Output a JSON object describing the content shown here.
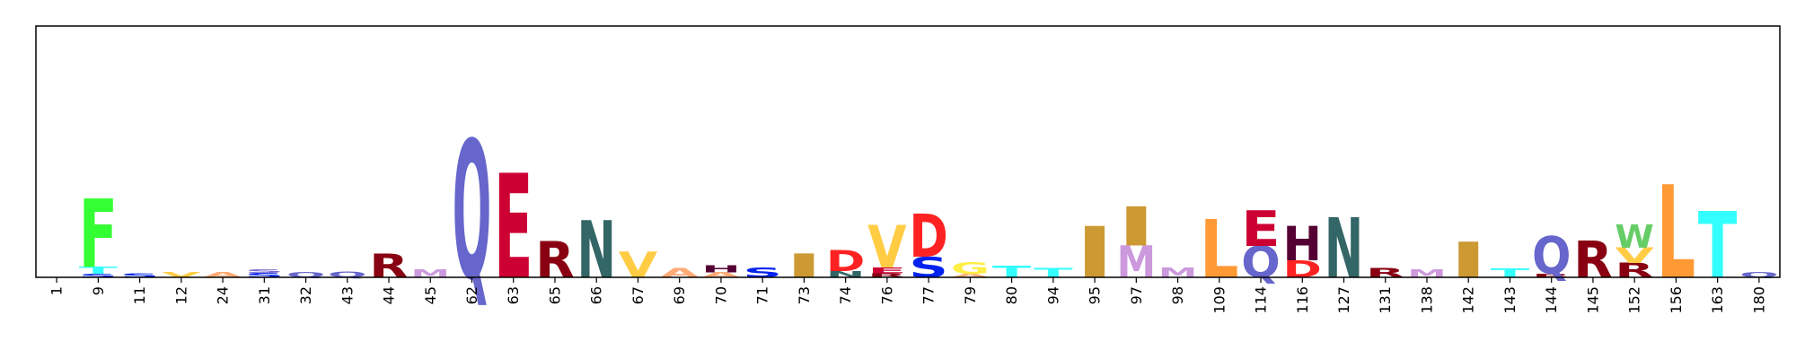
{
  "chart_data": {
    "type": "sequence-logo",
    "title": "",
    "xlabel": "",
    "ylabel": "",
    "ylim": [
      0,
      4.4
    ],
    "grid": false,
    "positions": [
      {
        "label": "1",
        "letters": []
      },
      {
        "label": "9",
        "letters": [
          {
            "char": "S",
            "height": 0.06,
            "color": "#0022EE"
          },
          {
            "char": "T",
            "height": 0.12,
            "color": "#33FFFF"
          },
          {
            "char": "F",
            "height": 1.2,
            "color": "#33FF33"
          }
        ]
      },
      {
        "label": "11",
        "letters": [
          {
            "char": "S",
            "height": 0.07,
            "color": "#0022EE"
          }
        ]
      },
      {
        "label": "12",
        "letters": [
          {
            "char": "V",
            "height": 0.09,
            "color": "#FFCC44"
          }
        ]
      },
      {
        "label": "24",
        "letters": [
          {
            "char": "A",
            "height": 0.09,
            "color": "#FFAA77"
          }
        ]
      },
      {
        "label": "31",
        "letters": [
          {
            "char": "S",
            "height": 0.08,
            "color": "#0022EE"
          },
          {
            "char": "S",
            "height": 0.06,
            "color": "#7766CC"
          }
        ]
      },
      {
        "label": "32",
        "letters": [
          {
            "char": "Q",
            "height": 0.09,
            "color": "#6666CC"
          }
        ]
      },
      {
        "label": "43",
        "letters": [
          {
            "char": "Q",
            "height": 0.1,
            "color": "#6666CC"
          }
        ]
      },
      {
        "label": "44",
        "letters": [
          {
            "char": "R",
            "height": 0.42,
            "color": "#880011"
          }
        ]
      },
      {
        "label": "45",
        "letters": [
          {
            "char": "M",
            "height": 0.14,
            "color": "#CC99DD"
          }
        ]
      },
      {
        "label": "62",
        "letters": [
          {
            "char": "Q",
            "height": 2.42,
            "color": "#6666CC"
          }
        ]
      },
      {
        "label": "63",
        "letters": [
          {
            "char": "E",
            "height": 1.83,
            "color": "#CC0033"
          }
        ]
      },
      {
        "label": "65",
        "letters": [
          {
            "char": "R",
            "height": 0.63,
            "color": "#880011"
          }
        ]
      },
      {
        "label": "66",
        "letters": [
          {
            "char": "N",
            "height": 1.0,
            "color": "#336666"
          }
        ]
      },
      {
        "label": "67",
        "letters": [
          {
            "char": "V",
            "height": 0.45,
            "color": "#FFCC44"
          }
        ]
      },
      {
        "label": "69",
        "letters": [
          {
            "char": "A",
            "height": 0.16,
            "color": "#FFAA77"
          }
        ]
      },
      {
        "label": "70",
        "letters": [
          {
            "char": "A",
            "height": 0.09,
            "color": "#FFAA77"
          },
          {
            "char": "H",
            "height": 0.12,
            "color": "#550033"
          }
        ]
      },
      {
        "label": "71",
        "letters": [
          {
            "char": "S",
            "height": 0.17,
            "color": "#0022EE"
          }
        ]
      },
      {
        "label": "73",
        "letters": [
          {
            "char": "I",
            "height": 0.42,
            "color": "#CC9933"
          }
        ]
      },
      {
        "label": "74",
        "letters": [
          {
            "char": "N",
            "height": 0.11,
            "color": "#336666"
          },
          {
            "char": "D",
            "height": 0.37,
            "color": "#FF2222"
          }
        ]
      },
      {
        "label": "76",
        "letters": [
          {
            "char": "R",
            "height": 0.07,
            "color": "#880011"
          },
          {
            "char": "E",
            "height": 0.1,
            "color": "#CC0033"
          },
          {
            "char": "V",
            "height": 0.75,
            "color": "#FFCC44"
          }
        ]
      },
      {
        "label": "77",
        "letters": [
          {
            "char": "S",
            "height": 0.36,
            "color": "#0022EE"
          },
          {
            "char": "D",
            "height": 0.76,
            "color": "#FF2222"
          }
        ]
      },
      {
        "label": "79",
        "letters": [
          {
            "char": "A",
            "height": 0.06,
            "color": "#FFAA77"
          },
          {
            "char": "G",
            "height": 0.2,
            "color": "#FFEE44"
          }
        ]
      },
      {
        "label": "80",
        "letters": [
          {
            "char": "T",
            "height": 0.2,
            "color": "#33FFFF"
          }
        ]
      },
      {
        "label": "94",
        "letters": [
          {
            "char": "T",
            "height": 0.16,
            "color": "#33FFFF"
          }
        ]
      },
      {
        "label": "95",
        "letters": [
          {
            "char": "I",
            "height": 0.9,
            "color": "#CC9933"
          }
        ]
      },
      {
        "label": "97",
        "letters": [
          {
            "char": "M",
            "height": 0.56,
            "color": "#CC99DD"
          },
          {
            "char": "I",
            "height": 0.68,
            "color": "#CC9933"
          }
        ]
      },
      {
        "label": "98",
        "letters": [
          {
            "char": "M",
            "height": 0.17,
            "color": "#CC99DD"
          }
        ]
      },
      {
        "label": "109",
        "letters": [
          {
            "char": "L",
            "height": 1.02,
            "color": "#FF9933"
          }
        ]
      },
      {
        "label": "114",
        "letters": [
          {
            "char": "Q",
            "height": 0.55,
            "color": "#6666CC"
          },
          {
            "char": "E",
            "height": 0.62,
            "color": "#CC0033"
          }
        ]
      },
      {
        "label": "116",
        "letters": [
          {
            "char": "D",
            "height": 0.3,
            "color": "#FF2222"
          },
          {
            "char": "H",
            "height": 0.6,
            "color": "#550033"
          }
        ]
      },
      {
        "label": "127",
        "letters": [
          {
            "char": "N",
            "height": 1.05,
            "color": "#336666"
          }
        ]
      },
      {
        "label": "131",
        "letters": [
          {
            "char": "R",
            "height": 0.16,
            "color": "#880011"
          }
        ]
      },
      {
        "label": "138",
        "letters": [
          {
            "char": "M",
            "height": 0.14,
            "color": "#CC99DD"
          }
        ]
      },
      {
        "label": "142",
        "letters": [
          {
            "char": "I",
            "height": 0.62,
            "color": "#CC9933"
          }
        ]
      },
      {
        "label": "143",
        "letters": [
          {
            "char": "T",
            "height": 0.15,
            "color": "#33FFFF"
          }
        ]
      },
      {
        "label": "144",
        "letters": [
          {
            "char": "R",
            "height": 0.06,
            "color": "#880011"
          },
          {
            "char": "Q",
            "height": 0.65,
            "color": "#6666CC"
          }
        ]
      },
      {
        "label": "145",
        "letters": [
          {
            "char": "R",
            "height": 0.64,
            "color": "#880011"
          }
        ]
      },
      {
        "label": "152",
        "letters": [
          {
            "char": "R",
            "height": 0.25,
            "color": "#880011"
          },
          {
            "char": "V",
            "height": 0.27,
            "color": "#FFCC44"
          },
          {
            "char": "W",
            "height": 0.41,
            "color": "#66CC66"
          }
        ]
      },
      {
        "label": "156",
        "letters": [
          {
            "char": "L",
            "height": 1.63,
            "color": "#FF9933"
          }
        ]
      },
      {
        "label": "163",
        "letters": [
          {
            "char": "T",
            "height": 1.16,
            "color": "#33FFFF"
          }
        ]
      },
      {
        "label": "180",
        "letters": [
          {
            "char": "Q",
            "height": 0.09,
            "color": "#6666CC"
          }
        ]
      }
    ]
  }
}
